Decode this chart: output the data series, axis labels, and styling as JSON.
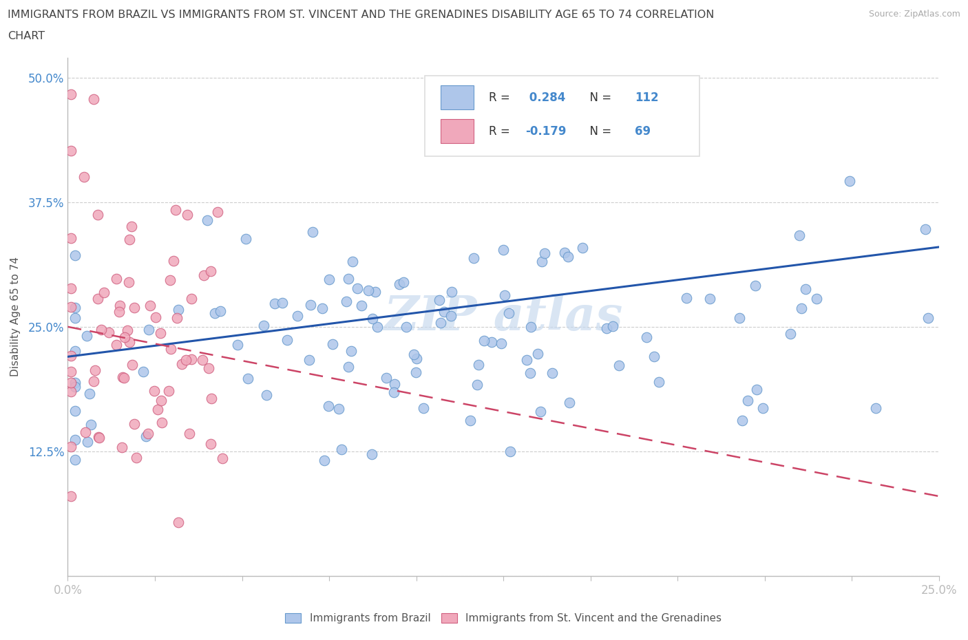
{
  "title_line1": "IMMIGRANTS FROM BRAZIL VS IMMIGRANTS FROM ST. VINCENT AND THE GRENADINES DISABILITY AGE 65 TO 74 CORRELATION",
  "title_line2": "CHART",
  "source_text": "Source: ZipAtlas.com",
  "ylabel": "Disability Age 65 to 74",
  "xlim": [
    0.0,
    0.25
  ],
  "ylim": [
    0.0,
    0.52
  ],
  "brazil_color": "#aec6ea",
  "brazil_edge": "#6699cc",
  "svg_color": "#f0a8bb",
  "svg_edge": "#d06080",
  "brazil_R": 0.284,
  "brazil_N": 112,
  "svg_R": -0.179,
  "svg_N": 69,
  "trend_brazil_color": "#2255aa",
  "trend_svg_color": "#cc4466",
  "tick_color": "#4488cc",
  "label_color": "#555555",
  "title_color": "#444444",
  "grid_color": "#cccccc",
  "watermark_color": "#c5d8ee",
  "legend_box_color": "#dddddd",
  "source_color": "#aaaaaa",
  "spine_color": "#bbbbbb"
}
